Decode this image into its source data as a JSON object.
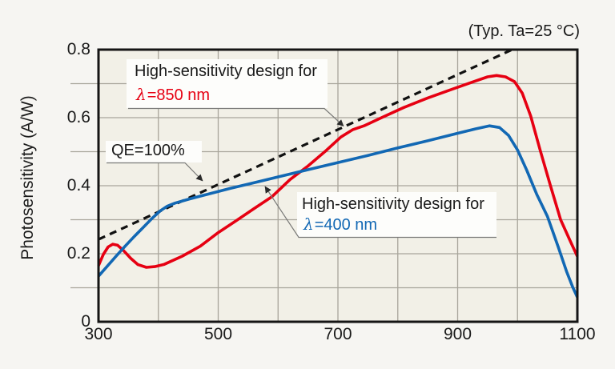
{
  "note_typ": "(Typ. Ta=25 °C)",
  "annotations": {
    "design850": {
      "line1": "High-sensitivity design for",
      "lambda": "λ",
      "rest": "=850 nm"
    },
    "design400": {
      "line1": "High-sensitivity design for",
      "lambda": "λ",
      "rest": "=400 nm"
    },
    "qe": {
      "label": "QE=100%"
    }
  },
  "chart_data": {
    "type": "line",
    "title": "",
    "xlabel": "",
    "ylabel": "Photosensitivity (A/W)",
    "xlim": [
      300,
      1100
    ],
    "ylim": [
      0,
      0.8
    ],
    "grid": true,
    "legend_position": "none",
    "xticks": {
      "values": [
        300,
        500,
        700,
        900,
        1100
      ],
      "labels": [
        "300",
        "500",
        "700",
        "900",
        "1100"
      ]
    },
    "xticks_minor": [
      400,
      600,
      800,
      1000
    ],
    "yticks": {
      "values": [
        0,
        0.2,
        0.4,
        0.6,
        0.8
      ],
      "labels": [
        "0",
        "0.2",
        "0.4",
        "0.6",
        "0.8"
      ]
    },
    "yticks_minor": [
      0.1,
      0.3,
      0.5,
      0.7
    ],
    "series": [
      {
        "name": "QE=100%",
        "style": "dashed",
        "color": "#111111",
        "points": [
          [
            300,
            0.242
          ],
          [
            991,
            0.8
          ]
        ]
      },
      {
        "name": "High-sensitivity design for λ=850 nm",
        "style": "solid",
        "color": "#e60012",
        "points": [
          [
            300,
            0.165
          ],
          [
            308,
            0.198
          ],
          [
            316,
            0.22
          ],
          [
            324,
            0.228
          ],
          [
            332,
            0.225
          ],
          [
            342,
            0.209
          ],
          [
            354,
            0.186
          ],
          [
            366,
            0.168
          ],
          [
            380,
            0.16
          ],
          [
            394,
            0.162
          ],
          [
            410,
            0.169
          ],
          [
            440,
            0.193
          ],
          [
            470,
            0.222
          ],
          [
            500,
            0.262
          ],
          [
            530,
            0.297
          ],
          [
            560,
            0.333
          ],
          [
            590,
            0.368
          ],
          [
            620,
            0.418
          ],
          [
            650,
            0.458
          ],
          [
            680,
            0.503
          ],
          [
            705,
            0.543
          ],
          [
            725,
            0.565
          ],
          [
            745,
            0.577
          ],
          [
            775,
            0.602
          ],
          [
            810,
            0.63
          ],
          [
            850,
            0.658
          ],
          [
            890,
            0.683
          ],
          [
            925,
            0.705
          ],
          [
            950,
            0.72
          ],
          [
            965,
            0.724
          ],
          [
            980,
            0.72
          ],
          [
            995,
            0.706
          ],
          [
            1008,
            0.672
          ],
          [
            1022,
            0.605
          ],
          [
            1038,
            0.503
          ],
          [
            1055,
            0.4
          ],
          [
            1072,
            0.3
          ],
          [
            1088,
            0.238
          ],
          [
            1100,
            0.192
          ]
        ]
      },
      {
        "name": "High-sensitivity design for λ=400 nm",
        "style": "solid",
        "color": "#1268b4",
        "points": [
          [
            300,
            0.134
          ],
          [
            315,
            0.164
          ],
          [
            330,
            0.194
          ],
          [
            345,
            0.223
          ],
          [
            360,
            0.251
          ],
          [
            375,
            0.278
          ],
          [
            390,
            0.305
          ],
          [
            403,
            0.326
          ],
          [
            415,
            0.34
          ],
          [
            428,
            0.349
          ],
          [
            450,
            0.36
          ],
          [
            480,
            0.374
          ],
          [
            520,
            0.392
          ],
          [
            560,
            0.409
          ],
          [
            600,
            0.426
          ],
          [
            650,
            0.447
          ],
          [
            700,
            0.468
          ],
          [
            750,
            0.489
          ],
          [
            800,
            0.511
          ],
          [
            850,
            0.532
          ],
          [
            900,
            0.554
          ],
          [
            930,
            0.567
          ],
          [
            953,
            0.576
          ],
          [
            970,
            0.571
          ],
          [
            985,
            0.548
          ],
          [
            1000,
            0.505
          ],
          [
            1015,
            0.447
          ],
          [
            1032,
            0.375
          ],
          [
            1050,
            0.31
          ],
          [
            1068,
            0.22
          ],
          [
            1082,
            0.148
          ],
          [
            1092,
            0.103
          ],
          [
            1100,
            0.072
          ]
        ]
      }
    ],
    "colors": {
      "page_bg": "#f6f5f2",
      "plot_bg": "#f2f0e7",
      "grid": "#a8a59b",
      "axis": "#151515",
      "label_box": "#fdfdfb",
      "callout": "#7a7a78",
      "arrow": "#2a2a2a",
      "red": "#e60012",
      "blue": "#1268b4"
    }
  }
}
